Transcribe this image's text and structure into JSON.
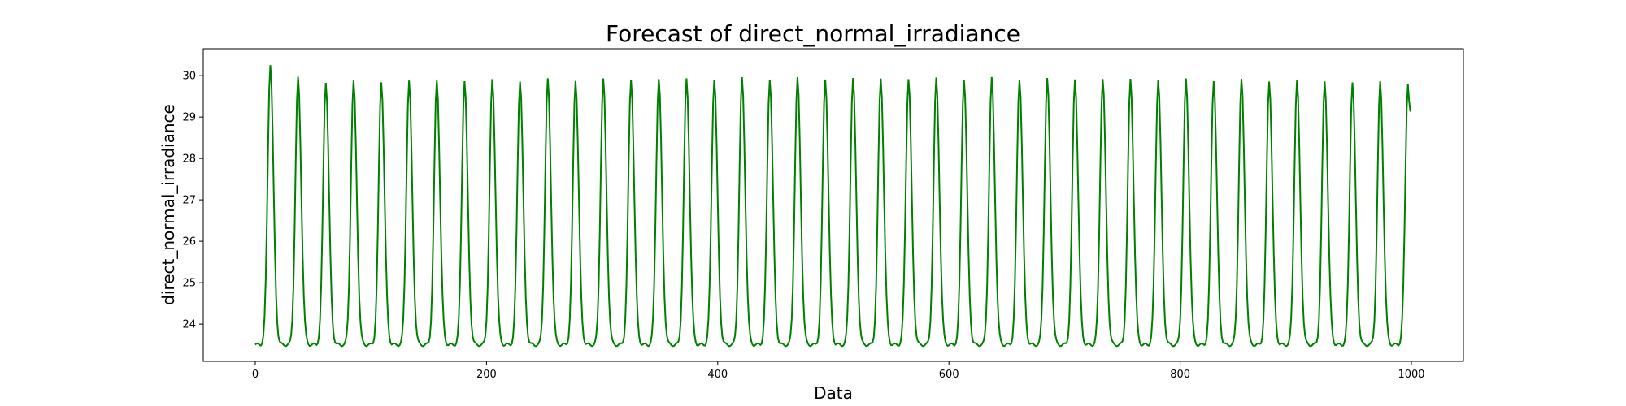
{
  "chart_data": {
    "type": "line",
    "title": "Forecast of direct_normal_irradiance",
    "xlabel": "Data",
    "ylabel": "direct_normal_irradiance",
    "xlim": [
      -45,
      1045
    ],
    "ylim": [
      23.1,
      30.65
    ],
    "x_ticks": [
      0,
      200,
      400,
      600,
      800,
      1000
    ],
    "y_ticks": [
      24,
      25,
      26,
      27,
      28,
      29,
      30
    ],
    "grid": false,
    "series": [
      {
        "color": "#008000",
        "x_start": 0,
        "x_end": 1000,
        "period": 24,
        "first_peak_x": 13,
        "last_x": 999,
        "last_y": 29.15,
        "baseline": 23.5,
        "peaks": [
          30.28,
          29.94,
          29.86,
          29.85,
          29.86,
          29.87,
          29.88,
          29.88,
          29.89,
          29.89,
          29.9,
          29.9,
          29.91,
          29.91,
          29.92,
          29.92,
          29.93,
          29.93,
          29.93,
          29.93,
          29.93,
          29.93,
          29.93,
          29.93,
          29.93,
          29.93,
          29.93,
          29.93,
          29.92,
          29.92,
          29.92,
          29.91,
          29.91,
          29.9,
          29.9,
          29.89,
          29.88,
          29.87,
          29.86,
          29.85,
          29.84,
          29.83
        ]
      }
    ]
  }
}
